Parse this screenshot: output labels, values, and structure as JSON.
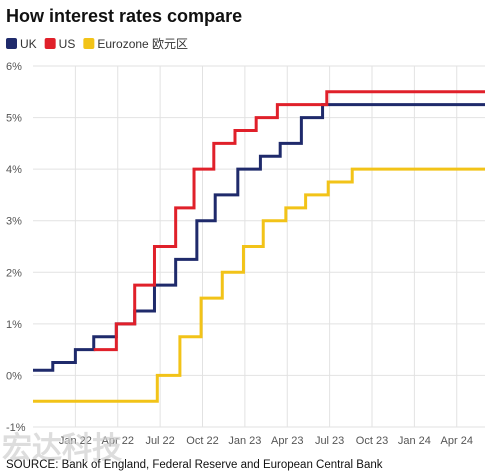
{
  "chart_data": {
    "type": "line",
    "title": "How interest rates compare",
    "x_unit": "months since Oct 2021",
    "x_ticks": [
      {
        "label": "Jan 22",
        "x": 3
      },
      {
        "label": "Apr 22",
        "x": 6
      },
      {
        "label": "Jul 22",
        "x": 9
      },
      {
        "label": "Oct 22",
        "x": 12
      },
      {
        "label": "Jan 23",
        "x": 15
      },
      {
        "label": "Apr 23",
        "x": 18
      },
      {
        "label": "Jul 23",
        "x": 21
      },
      {
        "label": "Oct 23",
        "x": 24
      },
      {
        "label": "Jan 24",
        "x": 27
      },
      {
        "label": "Apr 24",
        "x": 30
      }
    ],
    "xlim": [
      0,
      32
    ],
    "y_ticks": [
      -1,
      0,
      1,
      2,
      3,
      4,
      5,
      6
    ],
    "y_tick_suffix": "%",
    "ylim": [
      -1,
      6
    ],
    "grid": true,
    "legend_position": "top-left",
    "series": [
      {
        "name": "UK",
        "color": "#1f2a6b",
        "steps": [
          {
            "x": 0,
            "y": 0.1
          },
          {
            "x": 1.4,
            "y": 0.25
          },
          {
            "x": 3,
            "y": 0.5
          },
          {
            "x": 4.3,
            "y": 0.75
          },
          {
            "x": 5.9,
            "y": 1.0
          },
          {
            "x": 7.2,
            "y": 1.25
          },
          {
            "x": 8.6,
            "y": 1.75
          },
          {
            "x": 10.1,
            "y": 2.25
          },
          {
            "x": 11.6,
            "y": 3.0
          },
          {
            "x": 12.9,
            "y": 3.5
          },
          {
            "x": 14.5,
            "y": 4.0
          },
          {
            "x": 16.1,
            "y": 4.25
          },
          {
            "x": 17.5,
            "y": 4.5
          },
          {
            "x": 19.0,
            "y": 5.0
          },
          {
            "x": 20.5,
            "y": 5.25
          }
        ],
        "x_end": 32
      },
      {
        "name": "US",
        "color": "#e0202a",
        "steps": [
          {
            "x": 5.9,
            "y": 0.5
          },
          {
            "x": 5.9,
            "y": 1.0
          },
          {
            "x": 7.2,
            "y": 1.75
          },
          {
            "x": 8.6,
            "y": 2.5
          },
          {
            "x": 10.1,
            "y": 3.25
          },
          {
            "x": 11.4,
            "y": 4.0
          },
          {
            "x": 12.8,
            "y": 4.5
          },
          {
            "x": 14.3,
            "y": 4.75
          },
          {
            "x": 15.8,
            "y": 5.0
          },
          {
            "x": 17.3,
            "y": 5.25
          },
          {
            "x": 20.8,
            "y": 5.5
          }
        ],
        "x_start": 4.3,
        "start_y": 0.5,
        "x_end": 32
      },
      {
        "name": "Eurozone 欧元区",
        "color": "#f2c318",
        "steps": [
          {
            "x": 0,
            "y": -0.5
          },
          {
            "x": 8.8,
            "y": 0.0
          },
          {
            "x": 10.4,
            "y": 0.75
          },
          {
            "x": 11.9,
            "y": 1.5
          },
          {
            "x": 13.4,
            "y": 2.0
          },
          {
            "x": 14.9,
            "y": 2.5
          },
          {
            "x": 16.3,
            "y": 3.0
          },
          {
            "x": 17.9,
            "y": 3.25
          },
          {
            "x": 19.3,
            "y": 3.5
          },
          {
            "x": 20.9,
            "y": 3.75
          },
          {
            "x": 22.6,
            "y": 4.0
          }
        ],
        "x_end": 32
      }
    ]
  },
  "source": "SOURCE: Bank of England, Federal Reserve and European Central Bank",
  "watermark": "宏达科技"
}
